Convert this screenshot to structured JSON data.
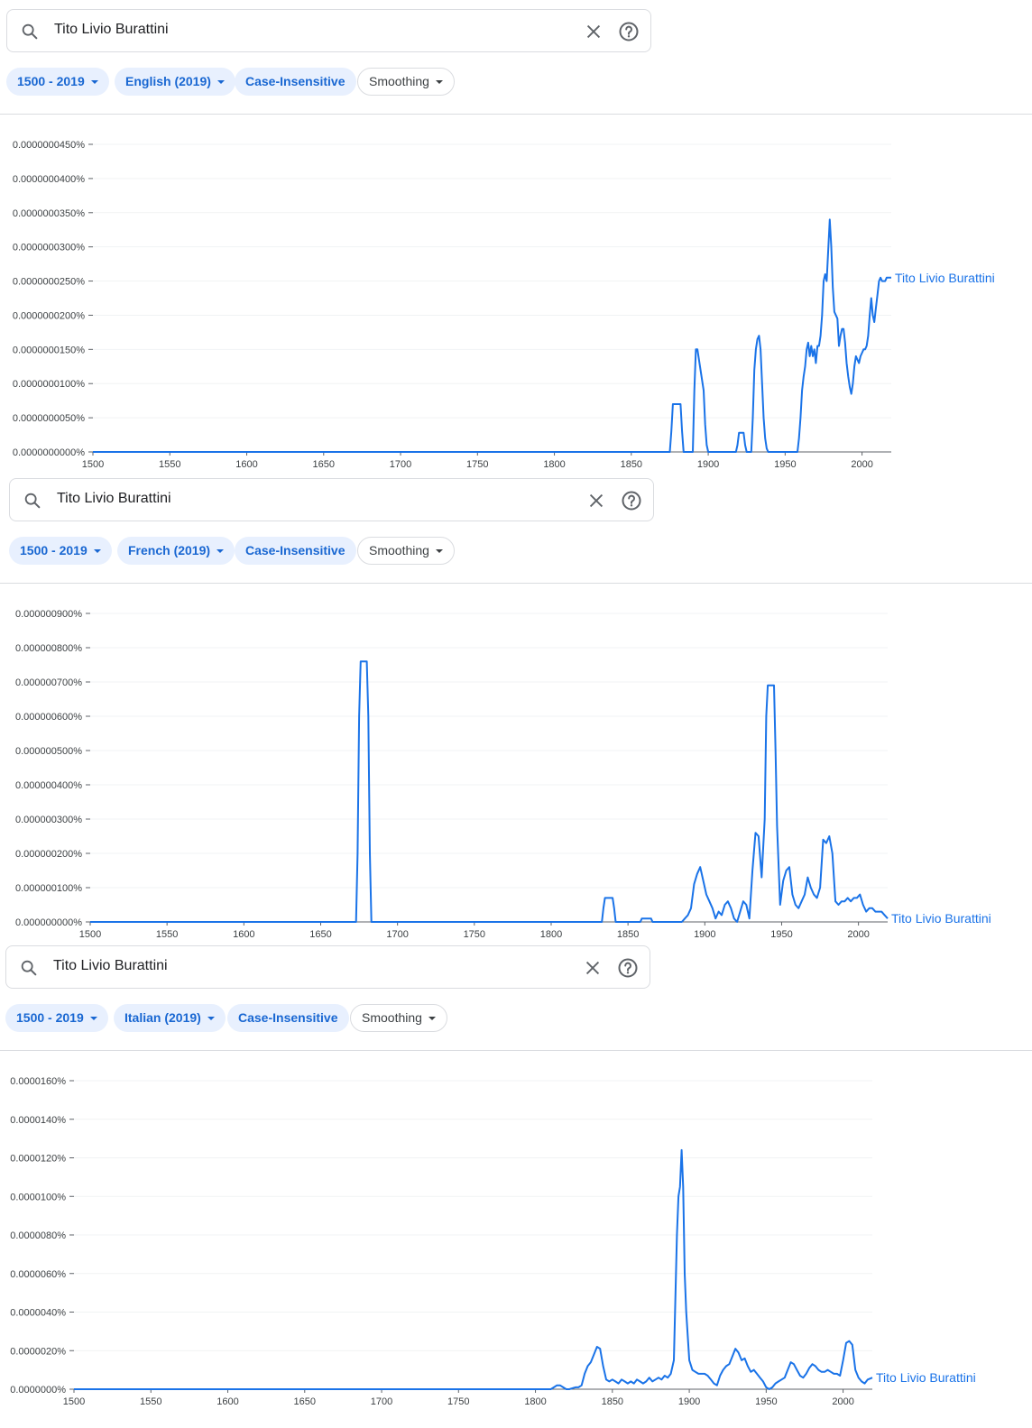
{
  "panels": [
    {
      "query": "Tito Livio Burattini",
      "chips": {
        "year_range": "1500 - 2019",
        "corpus": "English (2019)",
        "case": "Case-Insensitive",
        "smoothing": "Smoothing"
      }
    },
    {
      "query": "Tito Livio Burattini",
      "chips": {
        "year_range": "1500 - 2019",
        "corpus": "French (2019)",
        "case": "Case-Insensitive",
        "smoothing": "Smoothing"
      }
    },
    {
      "query": "Tito Livio Burattini",
      "chips": {
        "year_range": "1500 - 2019",
        "corpus": "Italian (2019)",
        "case": "Case-Insensitive",
        "smoothing": "Smoothing"
      }
    }
  ],
  "colors": {
    "line": "#1a73e8",
    "chip_bg": "#e8f0fe",
    "chip_text": "#1967d2",
    "grid": "#f1f3f4",
    "axis": "#5f6368"
  },
  "chart_data": [
    {
      "type": "line",
      "title": "",
      "xlabel": "",
      "ylabel": "",
      "xlim": [
        1500,
        2019
      ],
      "ylim": [
        0,
        4.5e-08
      ],
      "x_ticks": [
        "1500",
        "1550",
        "1600",
        "1650",
        "1700",
        "1750",
        "1800",
        "1850",
        "1900",
        "1950",
        "2000"
      ],
      "y_ticks": [
        "0.0000000000%",
        "0.0000000050%",
        "0.0000000100%",
        "0.0000000150%",
        "0.0000000200%",
        "0.0000000250%",
        "0.0000000300%",
        "0.0000000350%",
        "0.0000000400%",
        "0.0000000450%"
      ],
      "y_tick_values": [
        0,
        5e-09,
        1e-08,
        1.5e-08,
        2e-08,
        2.5e-08,
        3e-08,
        3.5e-08,
        4e-08,
        4.5e-08
      ],
      "grid": true,
      "series": [
        {
          "name": "Tito Livio Burattini",
          "x": [
            1500,
            1875,
            1876,
            1877,
            1882,
            1883,
            1884,
            1890,
            1891,
            1892,
            1893,
            1897,
            1898,
            1899,
            1900,
            1918,
            1919,
            1920,
            1923,
            1924,
            1925,
            1928,
            1929,
            1930,
            1931,
            1932,
            1933,
            1934,
            1935,
            1936,
            1937,
            1938,
            1939,
            1940,
            1958,
            1959,
            1960,
            1961,
            1962,
            1963,
            1964,
            1965,
            1966,
            1967,
            1968,
            1969,
            1970,
            1971,
            1972,
            1973,
            1974,
            1975,
            1976,
            1977,
            1978,
            1979,
            1980,
            1981,
            1982,
            1983,
            1984,
            1985,
            1986,
            1987,
            1988,
            1989,
            1990,
            1991,
            1992,
            1993,
            1994,
            1995,
            1996,
            1997,
            1998,
            1999,
            2000,
            2001,
            2002,
            2003,
            2004,
            2005,
            2006,
            2007,
            2008,
            2009,
            2010,
            2011,
            2012,
            2013,
            2014,
            2015,
            2016,
            2017,
            2018,
            2019
          ],
          "values": [
            0,
            0,
            3e-09,
            7e-09,
            7e-09,
            3e-09,
            0,
            0,
            9e-09,
            1.5e-08,
            1.5e-08,
            9e-09,
            4e-09,
            1e-09,
            0,
            0,
            1e-09,
            2.8e-09,
            2.8e-09,
            1e-09,
            0,
            0,
            5e-09,
            1.2e-08,
            1.5e-08,
            1.65e-08,
            1.7e-08,
            1.5e-08,
            1e-08,
            5e-09,
            2e-09,
            5e-10,
            0,
            0,
            0,
            2e-09,
            5e-09,
            9e-09,
            1.1e-08,
            1.25e-08,
            1.5e-08,
            1.6e-08,
            1.4e-08,
            1.55e-08,
            1.4e-08,
            1.5e-08,
            1.3e-08,
            1.55e-08,
            1.55e-08,
            1.7e-08,
            2e-08,
            2.5e-08,
            2.6e-08,
            2.5e-08,
            2.95e-08,
            3.4e-08,
            3e-08,
            2.4e-08,
            2.05e-08,
            2e-08,
            1.95e-08,
            1.55e-08,
            1.7e-08,
            1.8e-08,
            1.8e-08,
            1.6e-08,
            1.3e-08,
            1.1e-08,
            9.5e-09,
            8.5e-09,
            1e-08,
            1.25e-08,
            1.4e-08,
            1.35e-08,
            1.3e-08,
            1.4e-08,
            1.45e-08,
            1.5e-08,
            1.5e-08,
            1.55e-08,
            1.7e-08,
            2e-08,
            2.25e-08,
            2e-08,
            1.9e-08,
            2.1e-08,
            2.3e-08,
            2.5e-08,
            2.55e-08,
            2.5e-08,
            2.5e-08,
            2.5e-08,
            2.55e-08,
            2.55e-08,
            2.55e-08,
            2.55e-08
          ]
        }
      ]
    },
    {
      "type": "line",
      "title": "",
      "xlabel": "",
      "ylabel": "",
      "xlim": [
        1500,
        2019
      ],
      "ylim": [
        0,
        9e-07
      ],
      "x_ticks": [
        "1500",
        "1550",
        "1600",
        "1650",
        "1700",
        "1750",
        "1800",
        "1850",
        "1900",
        "1950",
        "2000"
      ],
      "y_ticks": [
        "0.000000000%",
        "0.000000100%",
        "0.000000200%",
        "0.000000300%",
        "0.000000400%",
        "0.000000500%",
        "0.000000600%",
        "0.000000700%",
        "0.000000800%",
        "0.000000900%"
      ],
      "y_tick_values": [
        0,
        1e-07,
        2e-07,
        3e-07,
        4e-07,
        5e-07,
        6e-07,
        7e-07,
        8e-07,
        9e-07
      ],
      "grid": true,
      "series": [
        {
          "name": "Tito Livio Burattini",
          "x": [
            1500,
            1673,
            1674,
            1675,
            1676,
            1680,
            1681,
            1682,
            1683,
            1833,
            1834,
            1835,
            1840,
            1841,
            1842,
            1858,
            1859,
            1865,
            1866,
            1885,
            1887,
            1889,
            1891,
            1893,
            1895,
            1897,
            1899,
            1901,
            1903,
            1905,
            1907,
            1909,
            1911,
            1913,
            1915,
            1917,
            1919,
            1921,
            1923,
            1925,
            1927,
            1929,
            1931,
            1933,
            1935,
            1937,
            1939,
            1940,
            1941,
            1945,
            1946,
            1947,
            1949,
            1951,
            1953,
            1955,
            1957,
            1959,
            1961,
            1963,
            1965,
            1967,
            1969,
            1971,
            1973,
            1975,
            1977,
            1979,
            1981,
            1983,
            1985,
            1987,
            1989,
            1991,
            1993,
            1995,
            1997,
            1999,
            2001,
            2003,
            2005,
            2007,
            2009,
            2011,
            2013,
            2015,
            2017,
            2019
          ],
          "values": [
            0,
            0,
            2e-07,
            6e-07,
            7.6e-07,
            7.6e-07,
            6e-07,
            2e-07,
            0,
            0,
            4e-08,
            7e-08,
            7e-08,
            4e-08,
            0,
            0,
            1e-08,
            1e-08,
            0,
            0,
            1e-08,
            2e-08,
            4e-08,
            1.1e-07,
            1.4e-07,
            1.6e-07,
            1.2e-07,
            8e-08,
            6e-08,
            4e-08,
            1e-08,
            3e-08,
            2e-08,
            5e-08,
            6e-08,
            4e-08,
            1e-08,
            0,
            3e-08,
            6e-08,
            5e-08,
            1e-08,
            1.5e-07,
            2.6e-07,
            2.5e-07,
            1.3e-07,
            3e-07,
            6e-07,
            6.9e-07,
            6.9e-07,
            5e-07,
            2.8e-07,
            5e-08,
            1.2e-07,
            1.5e-07,
            1.6e-07,
            8e-08,
            5e-08,
            4e-08,
            6e-08,
            8e-08,
            1.3e-07,
            1e-07,
            8e-08,
            7e-08,
            1e-07,
            2.4e-07,
            2.3e-07,
            2.5e-07,
            2e-07,
            6e-08,
            5e-08,
            6e-08,
            6e-08,
            7e-08,
            6e-08,
            7e-08,
            7e-08,
            8e-08,
            5e-08,
            3e-08,
            4e-08,
            4e-08,
            3e-08,
            3e-08,
            3e-08,
            2e-08,
            1e-08
          ]
        }
      ]
    },
    {
      "type": "line",
      "title": "",
      "xlabel": "",
      "ylabel": "",
      "xlim": [
        1500,
        2019
      ],
      "ylim": [
        0,
        1.6e-05
      ],
      "x_ticks": [
        "1500",
        "1550",
        "1600",
        "1650",
        "1700",
        "1750",
        "1800",
        "1850",
        "1900",
        "1950",
        "2000"
      ],
      "y_ticks": [
        "0.0000000%",
        "0.0000020%",
        "0.0000040%",
        "0.0000060%",
        "0.0000080%",
        "0.0000100%",
        "0.0000120%",
        "0.0000140%",
        "0.0000160%"
      ],
      "y_tick_values": [
        0,
        2e-06,
        4e-06,
        6e-06,
        8e-06,
        1e-05,
        1.2e-05,
        1.4e-05,
        1.6e-05
      ],
      "grid": true,
      "series": [
        {
          "name": "Tito Livio Burattini",
          "x": [
            1500,
            1810,
            1812,
            1814,
            1816,
            1818,
            1820,
            1822,
            1824,
            1826,
            1828,
            1830,
            1832,
            1834,
            1836,
            1838,
            1840,
            1842,
            1844,
            1846,
            1848,
            1850,
            1852,
            1854,
            1856,
            1858,
            1860,
            1862,
            1864,
            1866,
            1868,
            1870,
            1872,
            1874,
            1876,
            1878,
            1880,
            1882,
            1884,
            1886,
            1888,
            1890,
            1892,
            1893,
            1894,
            1895,
            1896,
            1897,
            1898,
            1900,
            1902,
            1904,
            1906,
            1908,
            1910,
            1912,
            1914,
            1916,
            1918,
            1920,
            1922,
            1924,
            1926,
            1928,
            1930,
            1932,
            1934,
            1936,
            1938,
            1940,
            1942,
            1944,
            1946,
            1948,
            1950,
            1952,
            1954,
            1956,
            1958,
            1960,
            1962,
            1964,
            1966,
            1968,
            1970,
            1972,
            1974,
            1976,
            1978,
            1980,
            1982,
            1984,
            1986,
            1988,
            1990,
            1992,
            1994,
            1996,
            1998,
            2000,
            2002,
            2004,
            2006,
            2008,
            2010,
            2012,
            2014,
            2016,
            2019
          ],
          "values": [
            0,
            0,
            1e-07,
            2e-07,
            2e-07,
            1e-07,
            0,
            0,
            5e-08,
            1e-07,
            1e-07,
            2e-07,
            8e-07,
            1.2e-06,
            1.4e-06,
            1.8e-06,
            2.2e-06,
            2.1e-06,
            1.2e-06,
            5e-07,
            4e-07,
            5e-07,
            4e-07,
            3e-07,
            5e-07,
            4e-07,
            3e-07,
            4e-07,
            3e-07,
            5e-07,
            4e-07,
            3e-07,
            4e-07,
            6e-07,
            4e-07,
            5e-07,
            6e-07,
            5e-07,
            7e-07,
            6e-07,
            8e-07,
            1.5e-06,
            8e-06,
            1e-05,
            1.05e-05,
            1.24e-05,
            1.05e-05,
            6e-06,
            4e-06,
            1.5e-06,
            1e-06,
            9e-07,
            8e-07,
            8e-07,
            8e-07,
            7e-07,
            5e-07,
            3e-07,
            2e-07,
            7e-07,
            1e-06,
            1.2e-06,
            1.3e-06,
            1.7e-06,
            2.1e-06,
            1.9e-06,
            1.5e-06,
            1.6e-06,
            1.2e-06,
            9e-07,
            1e-06,
            8e-07,
            6e-07,
            4e-07,
            1e-07,
            0,
            1e-07,
            3e-07,
            4e-07,
            5e-07,
            6e-07,
            1e-06,
            1.4e-06,
            1.3e-06,
            1e-06,
            7e-07,
            6e-07,
            8e-07,
            1.1e-06,
            1.3e-06,
            1.2e-06,
            1e-06,
            9e-07,
            9e-07,
            1e-06,
            9e-07,
            8e-07,
            8e-07,
            7e-07,
            1.5e-06,
            2.4e-06,
            2.5e-06,
            2.3e-06,
            1e-06,
            6e-07,
            4e-07,
            3e-07,
            5e-07,
            6e-07
          ]
        }
      ]
    }
  ]
}
